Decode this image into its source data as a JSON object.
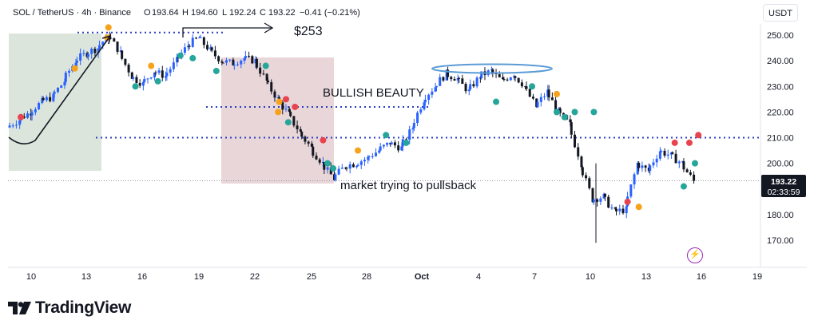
{
  "header": {
    "symbol": "SOL / TetherUS · 4h · Binance",
    "open_label": "O",
    "open": "193.64",
    "high_label": "H",
    "high": "194.60",
    "low_label": "L",
    "low": "192.24",
    "close_label": "C",
    "close": "193.22",
    "change": "−0.41 (−0.21%)"
  },
  "currency": "USDT",
  "current_price": "193.22",
  "countdown": "02:33:59",
  "brand": "TradingView",
  "annotations": {
    "target": "$253",
    "bullish": "BULLISH BEAUTY",
    "pullback": "market trying to pullsback"
  },
  "colors": {
    "up": "#2962ff",
    "down": "#131722",
    "dotted_line": "#2a3fbf",
    "green_zone": "#dbe5dc",
    "red_zone": "#e9d6d8",
    "ellipse": "#5b9bd5",
    "dot_green": "#26a69a",
    "dot_orange": "#f7a21b",
    "dot_red": "#e8434e"
  },
  "icons": [
    "lightning-icon",
    "tradingview-logo-icon"
  ],
  "chart_data": {
    "type": "candlestick",
    "x_ticks": [
      "10",
      "13",
      "16",
      "19",
      "22",
      "25",
      "28",
      "Oct",
      "4",
      "7",
      "10",
      "13",
      "16",
      "19"
    ],
    "y_ticks": [
      "250.00",
      "240.00",
      "230.00",
      "220.00",
      "210.00",
      "200.00",
      "190.00",
      "180.00",
      "170.00"
    ],
    "ylim": [
      165,
      257
    ],
    "horizontal_levels": [
      251,
      222,
      210,
      193.2
    ],
    "trend": [
      [
        0.0,
        214
      ],
      [
        1.0,
        217
      ],
      [
        2.0,
        220
      ],
      [
        3.0,
        224
      ],
      [
        4.0,
        226
      ],
      [
        5.0,
        232
      ],
      [
        6.0,
        240
      ],
      [
        7.0,
        243
      ],
      [
        8.0,
        245
      ],
      [
        9.0,
        250
      ],
      [
        10.0,
        243
      ],
      [
        11.0,
        234
      ],
      [
        12.0,
        231
      ],
      [
        13.0,
        236
      ],
      [
        14.0,
        234
      ],
      [
        15.0,
        240
      ],
      [
        16.0,
        246
      ],
      [
        17.0,
        249
      ],
      [
        18.0,
        244
      ],
      [
        19.0,
        240
      ],
      [
        20.0,
        239
      ],
      [
        21.0,
        241
      ],
      [
        22.0,
        240
      ],
      [
        23.0,
        232
      ],
      [
        24.0,
        225
      ],
      [
        25.0,
        219
      ],
      [
        26.0,
        212
      ],
      [
        27.0,
        206
      ],
      [
        28.0,
        200
      ],
      [
        29.0,
        194
      ],
      [
        30.0,
        199
      ],
      [
        31.0,
        200
      ],
      [
        32.0,
        202
      ],
      [
        33.0,
        205
      ],
      [
        34.0,
        208
      ],
      [
        35.0,
        206
      ],
      [
        36.0,
        214
      ],
      [
        37.0,
        225
      ],
      [
        38.0,
        230
      ],
      [
        39.0,
        235
      ],
      [
        40.0,
        233
      ],
      [
        41.0,
        228
      ],
      [
        42.0,
        234
      ],
      [
        43.0,
        236
      ],
      [
        44.0,
        232
      ],
      [
        45.0,
        235
      ],
      [
        46.0,
        230
      ],
      [
        47.0,
        222
      ],
      [
        48.0,
        228
      ],
      [
        49.0,
        220
      ],
      [
        50.0,
        215
      ],
      [
        51.0,
        200
      ],
      [
        52.0,
        186
      ],
      [
        53.0,
        187
      ],
      [
        54.0,
        181
      ],
      [
        55.0,
        182
      ],
      [
        56.0,
        200
      ],
      [
        57.0,
        197
      ],
      [
        58.0,
        205
      ],
      [
        59.0,
        203
      ],
      [
        60.0,
        200
      ],
      [
        61.0,
        193
      ]
    ],
    "signals": [
      {
        "i": 1,
        "y": 218,
        "kind": "red"
      },
      {
        "i": 8.8,
        "y": 253,
        "kind": "orange"
      },
      {
        "i": 8.7,
        "y": 249,
        "kind": "orange"
      },
      {
        "i": 5.8,
        "y": 237,
        "kind": "orange"
      },
      {
        "i": 11.2,
        "y": 230,
        "kind": "green"
      },
      {
        "i": 12.6,
        "y": 238,
        "kind": "orange"
      },
      {
        "i": 13.2,
        "y": 232,
        "kind": "green"
      },
      {
        "i": 15.2,
        "y": 242,
        "kind": "green"
      },
      {
        "i": 16.3,
        "y": 241,
        "kind": "green"
      },
      {
        "i": 18.4,
        "y": 236,
        "kind": "green"
      },
      {
        "i": 22.8,
        "y": 238,
        "kind": "green"
      },
      {
        "i": 24.0,
        "y": 224,
        "kind": "orange"
      },
      {
        "i": 24.6,
        "y": 225,
        "kind": "red"
      },
      {
        "i": 25.4,
        "y": 222,
        "kind": "red"
      },
      {
        "i": 23.9,
        "y": 220,
        "kind": "orange"
      },
      {
        "i": 24.8,
        "y": 216,
        "kind": "green"
      },
      {
        "i": 27.9,
        "y": 209,
        "kind": "red"
      },
      {
        "i": 28.3,
        "y": 200,
        "kind": "green"
      },
      {
        "i": 28.8,
        "y": 198,
        "kind": "green"
      },
      {
        "i": 31.0,
        "y": 205,
        "kind": "orange"
      },
      {
        "i": 33.5,
        "y": 211,
        "kind": "green"
      },
      {
        "i": 35.3,
        "y": 208,
        "kind": "green"
      },
      {
        "i": 43.3,
        "y": 224,
        "kind": "green"
      },
      {
        "i": 46.5,
        "y": 230,
        "kind": "green"
      },
      {
        "i": 48.7,
        "y": 227,
        "kind": "orange"
      },
      {
        "i": 48.7,
        "y": 220,
        "kind": "green"
      },
      {
        "i": 49.4,
        "y": 218,
        "kind": "green"
      },
      {
        "i": 50.3,
        "y": 220,
        "kind": "green"
      },
      {
        "i": 52.0,
        "y": 220,
        "kind": "green"
      },
      {
        "i": 55.0,
        "y": 185,
        "kind": "red"
      },
      {
        "i": 56.0,
        "y": 183,
        "kind": "orange"
      },
      {
        "i": 59.2,
        "y": 208,
        "kind": "red"
      },
      {
        "i": 60.0,
        "y": 191,
        "kind": "green"
      },
      {
        "i": 60.5,
        "y": 208,
        "kind": "red"
      },
      {
        "i": 61.3,
        "y": 211,
        "kind": "red"
      },
      {
        "i": 61.0,
        "y": 200,
        "kind": "green"
      }
    ]
  }
}
